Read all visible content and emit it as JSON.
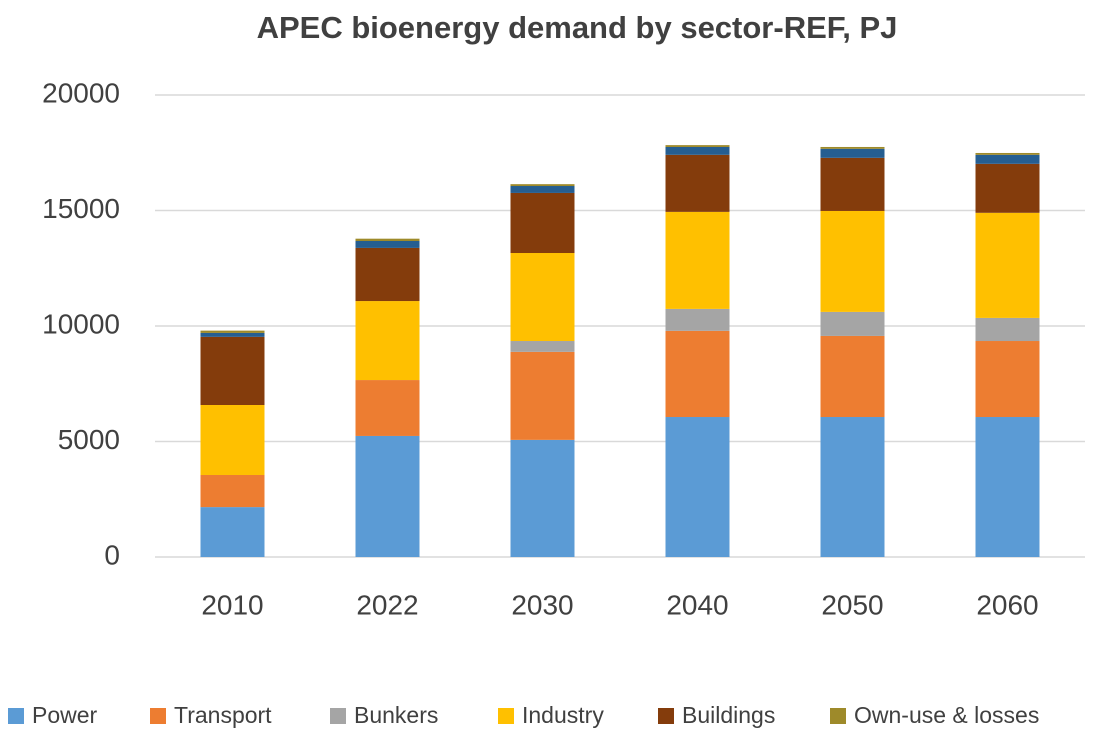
{
  "chart_data": {
    "type": "stacked_bar",
    "title": "APEC bioenergy demand by sector-REF, PJ",
    "categories": [
      "2010",
      "2022",
      "2030",
      "2040",
      "2050",
      "2060"
    ],
    "series": [
      {
        "name": "Power",
        "color": "#5b9bd5",
        "values": [
          2160,
          5240,
          5070,
          6060,
          6060,
          6060
        ]
      },
      {
        "name": "Transport",
        "color": "#ed7d31",
        "values": [
          1390,
          2420,
          3810,
          3730,
          3510,
          3290
        ]
      },
      {
        "name": "Bunkers",
        "color": "#a5a5a5",
        "values": [
          0,
          0,
          470,
          950,
          1040,
          1000
        ]
      },
      {
        "name": "Industry",
        "color": "#ffc000",
        "values": [
          3030,
          3420,
          3810,
          4200,
          4370,
          4550
        ]
      },
      {
        "name": "Buildings",
        "color": "#843c0c",
        "values": [
          2950,
          2300,
          2600,
          2470,
          2300,
          2120
        ]
      },
      {
        "color": "#255e91",
        "values": [
          170,
          300,
          300,
          340,
          390,
          390
        ]
      },
      {
        "name": "Own-use & losses",
        "color": "#9e8a2a",
        "values": [
          100,
          100,
          80,
          80,
          80,
          80
        ]
      }
    ],
    "ylim": [
      0,
      20000
    ],
    "yticks": [
      0,
      5000,
      10000,
      15000,
      20000
    ],
    "grid": true,
    "legend": "bottom"
  }
}
